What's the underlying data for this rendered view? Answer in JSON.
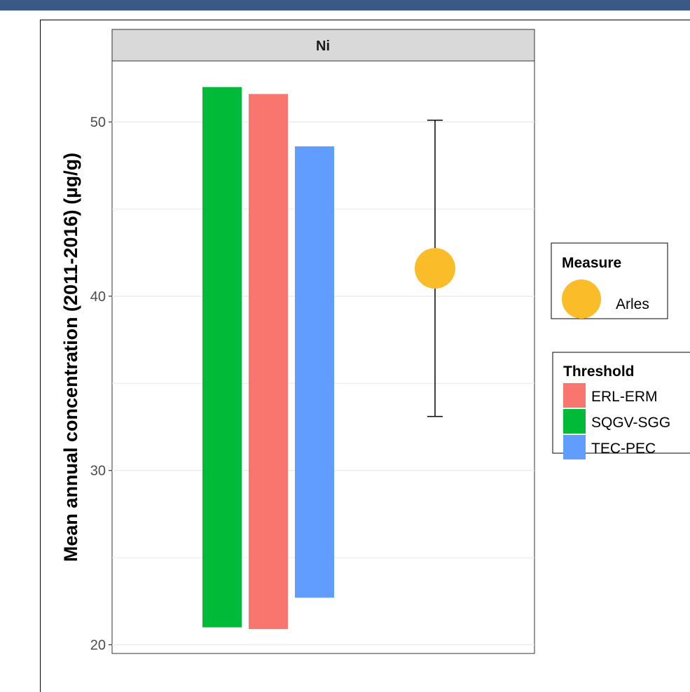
{
  "window": {
    "accent_color": "#3a5a85"
  },
  "chart_data": {
    "type": "bar",
    "facet": "Ni",
    "ylabel": "Mean annual concentration (2011-2016) (µg/g)",
    "xlabel": "",
    "ylim": [
      19.5,
      53.5
    ],
    "y_ticks": [
      20,
      30,
      40,
      50
    ],
    "grid": true,
    "thresholds": [
      {
        "name": "SQGV-SGG",
        "low": 21.0,
        "high": 52.0,
        "color": "#00ba38"
      },
      {
        "name": "ERL-ERM",
        "low": 20.9,
        "high": 51.6,
        "color": "#f8766d"
      },
      {
        "name": "TEC-PEC",
        "low": 22.7,
        "high": 48.6,
        "color": "#619cff"
      }
    ],
    "measure": {
      "name": "Arles",
      "mean": 41.6,
      "error_low": 33.1,
      "error_high": 50.1,
      "color": "#fbbc2a"
    },
    "legend": {
      "placement": "right",
      "measure_title": "Measure",
      "measure_items": [
        "Arles"
      ],
      "threshold_title": "Threshold",
      "threshold_items": [
        "ERL-ERM",
        "SQGV-SGG",
        "TEC-PEC"
      ]
    }
  }
}
